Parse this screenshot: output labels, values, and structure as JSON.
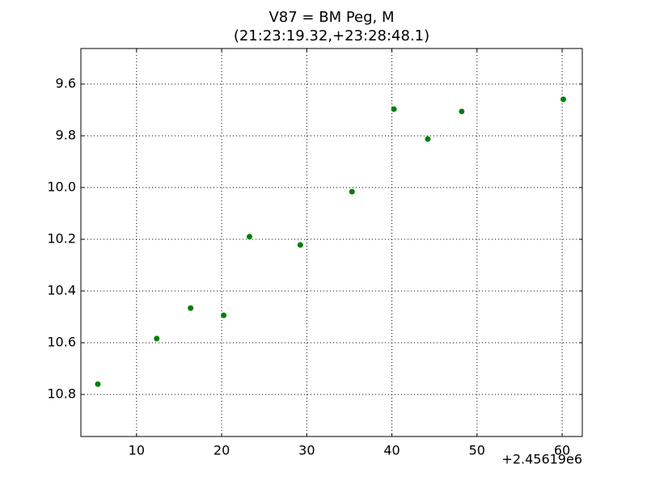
{
  "chart_data": {
    "type": "scatter",
    "title": "V87 = BM Peg, M",
    "subtitle": "(21:23:19.32,+23:28:48.1)",
    "x_offset_label": "+2.45619e6",
    "x": [
      5.45,
      12.37,
      16.35,
      20.24,
      23.27,
      29.24,
      35.31,
      40.24,
      44.22,
      48.2,
      60.14
    ],
    "series": [
      {
        "name": "V87",
        "color": "#008000",
        "values": [
          10.76,
          10.584,
          10.466,
          10.494,
          10.19,
          10.222,
          10.016,
          9.697,
          9.8125,
          9.706,
          9.659
        ]
      }
    ],
    "xlim": [
      3.46,
      62.37
    ],
    "xticks": [
      10,
      20,
      30,
      40,
      50,
      60
    ],
    "ylim": [
      10.9625,
      9.4625
    ],
    "yticks": [
      9.6,
      9.8,
      {
        "value": 10,
        "label": "10.0"
      },
      10.2,
      10.4,
      10.6,
      10.8
    ],
    "grid": true
  }
}
